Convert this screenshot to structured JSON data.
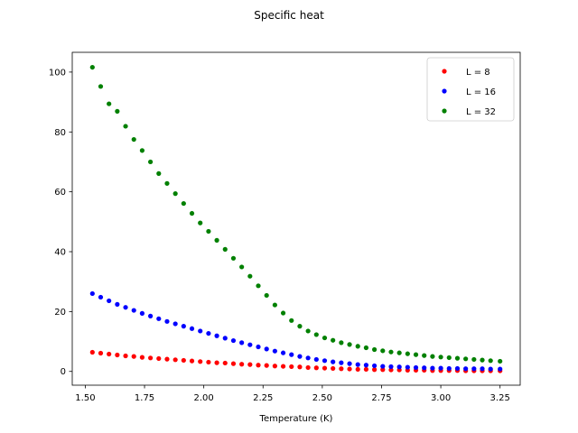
{
  "chart_data": {
    "type": "scatter",
    "title": "Specific heat",
    "xlabel": "Temperature (K)",
    "ylabel": "",
    "xlim": [
      1.445,
      3.335
    ],
    "ylim": [
      -4.6,
      106.6
    ],
    "xticks": [
      "1.50",
      "1.75",
      "2.00",
      "2.25",
      "2.50",
      "2.75",
      "3.00",
      "3.25"
    ],
    "yticks": [
      "0",
      "20",
      "40",
      "60",
      "80",
      "100"
    ],
    "grid": false,
    "legend_position": "top-right",
    "x": [
      1.53,
      1.565,
      1.6,
      1.635,
      1.67,
      1.705,
      1.74,
      1.775,
      1.81,
      1.845,
      1.88,
      1.915,
      1.95,
      1.985,
      2.02,
      2.055,
      2.09,
      2.125,
      2.16,
      2.195,
      2.23,
      2.265,
      2.3,
      2.335,
      2.37,
      2.405,
      2.44,
      2.475,
      2.51,
      2.545,
      2.58,
      2.615,
      2.65,
      2.685,
      2.72,
      2.755,
      2.79,
      2.825,
      2.86,
      2.895,
      2.93,
      2.965,
      3.0,
      3.035,
      3.07,
      3.105,
      3.14,
      3.175,
      3.21,
      3.25
    ],
    "series": [
      {
        "name": "L = 8",
        "color": "#ff0000",
        "values": [
          6.4,
          6.1,
          5.8,
          5.5,
          5.2,
          5.0,
          4.7,
          4.5,
          4.3,
          4.1,
          3.9,
          3.7,
          3.5,
          3.3,
          3.1,
          2.9,
          2.8,
          2.6,
          2.4,
          2.3,
          2.1,
          2.0,
          1.8,
          1.7,
          1.6,
          1.5,
          1.3,
          1.2,
          1.1,
          1.0,
          0.9,
          0.8,
          0.7,
          0.7,
          0.6,
          0.6,
          0.5,
          0.5,
          0.4,
          0.4,
          0.4,
          0.3,
          0.3,
          0.3,
          0.3,
          0.2,
          0.2,
          0.2,
          0.2,
          0.2
        ]
      },
      {
        "name": "L = 16",
        "color": "#0000ff",
        "values": [
          26.0,
          24.8,
          23.6,
          22.4,
          21.4,
          20.4,
          19.4,
          18.5,
          17.6,
          16.7,
          15.9,
          15.1,
          14.3,
          13.5,
          12.7,
          11.9,
          11.1,
          10.3,
          9.6,
          8.9,
          8.2,
          7.5,
          6.8,
          6.2,
          5.6,
          5.0,
          4.5,
          4.0,
          3.6,
          3.2,
          2.9,
          2.6,
          2.3,
          2.1,
          1.9,
          1.7,
          1.6,
          1.5,
          1.4,
          1.3,
          1.2,
          1.1,
          1.1,
          1.0,
          1.0,
          0.9,
          0.9,
          0.9,
          0.8,
          0.8
        ]
      },
      {
        "name": "L = 32",
        "color": "#008000",
        "values": [
          101.6,
          95.2,
          89.4,
          86.9,
          81.9,
          77.5,
          73.8,
          70.0,
          66.1,
          62.8,
          59.4,
          56.1,
          52.8,
          49.6,
          46.8,
          43.8,
          40.8,
          37.8,
          34.9,
          31.8,
          28.6,
          25.4,
          22.2,
          19.5,
          17.0,
          15.1,
          13.5,
          12.3,
          11.2,
          10.4,
          9.6,
          9.0,
          8.4,
          7.9,
          7.3,
          6.9,
          6.5,
          6.2,
          5.9,
          5.6,
          5.3,
          5.0,
          4.8,
          4.6,
          4.4,
          4.2,
          4.0,
          3.8,
          3.6,
          3.4
        ]
      }
    ]
  }
}
